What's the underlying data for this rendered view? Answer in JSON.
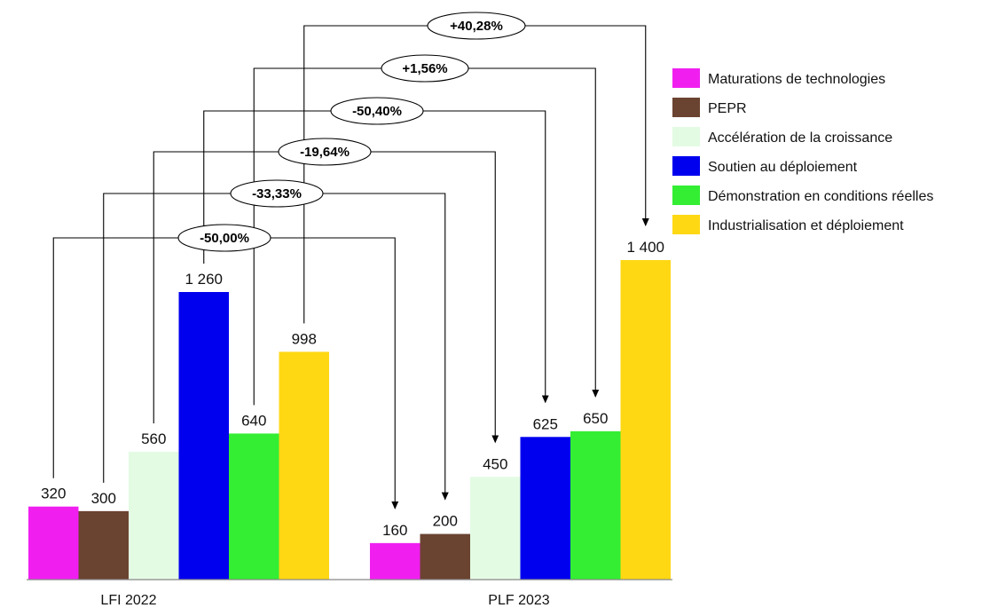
{
  "chart_data": {
    "type": "bar",
    "categories": [
      "LFI  2022",
      "PLF 2023"
    ],
    "series": [
      {
        "name": "Maturations de technologies",
        "values": [
          320,
          160
        ],
        "labels": [
          "320",
          "160"
        ],
        "color": "#F01FF0",
        "change": "-50,00%"
      },
      {
        "name": "PEPR",
        "values": [
          300,
          200
        ],
        "labels": [
          "300",
          "200"
        ],
        "color": "#6B4331",
        "change": "-33,33%"
      },
      {
        "name": "Accélération de la croissance",
        "values": [
          560,
          450
        ],
        "labels": [
          "560",
          "450"
        ],
        "color": "#E3FBE3",
        "change": "-19,64%"
      },
      {
        "name": "Soutien au déploiement",
        "values": [
          1260,
          625
        ],
        "labels": [
          "1 260",
          "625"
        ],
        "color": "#0000EE",
        "change": "-50,40%"
      },
      {
        "name": "Démonstration en conditions réelles",
        "values": [
          640,
          650
        ],
        "labels": [
          "640",
          "650"
        ],
        "color": "#33EE33",
        "change": "+1,56%"
      },
      {
        "name": "Industrialisation et déploiement",
        "values": [
          998,
          1400
        ],
        "labels": [
          "998",
          "1 400"
        ],
        "color": "#FFD814",
        "change": "+40,28%"
      }
    ],
    "legend_position": "top-right",
    "grid": false
  }
}
